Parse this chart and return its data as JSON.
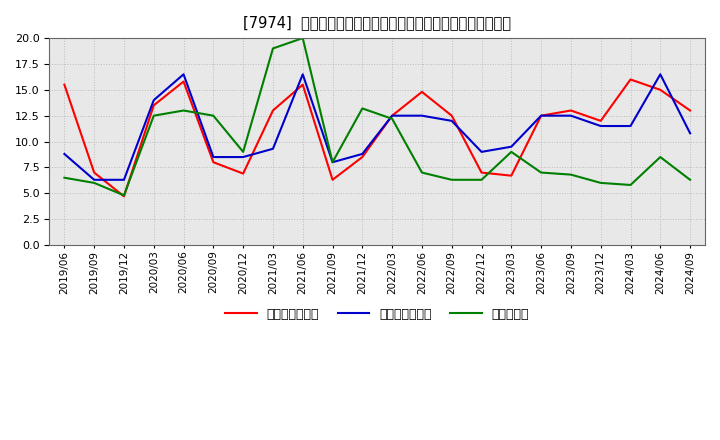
{
  "title": "[7974]  売上債権回転率、買入債務回転率、在庫回転率の推移",
  "dates": [
    "2019/06",
    "2019/09",
    "2019/12",
    "2020/03",
    "2020/06",
    "2020/09",
    "2020/12",
    "2021/03",
    "2021/06",
    "2021/09",
    "2021/12",
    "2022/03",
    "2022/06",
    "2022/09",
    "2022/12",
    "2023/03",
    "2023/06",
    "2023/09",
    "2023/12",
    "2024/03",
    "2024/06",
    "2024/09"
  ],
  "receivables_turnover": [
    15.5,
    7.0,
    4.7,
    13.5,
    15.8,
    8.0,
    6.9,
    13.0,
    15.5,
    6.3,
    8.5,
    12.5,
    14.8,
    12.5,
    7.0,
    6.7,
    12.5,
    13.0,
    12.0,
    16.0,
    15.0,
    13.0
  ],
  "payables_turnover": [
    8.8,
    6.3,
    6.3,
    14.0,
    16.5,
    8.5,
    8.5,
    9.3,
    16.5,
    8.0,
    8.8,
    12.5,
    12.5,
    12.0,
    9.0,
    9.5,
    12.5,
    12.5,
    11.5,
    11.5,
    16.5,
    10.8
  ],
  "inventory_turnover": [
    6.5,
    6.0,
    4.8,
    12.5,
    13.0,
    12.5,
    9.0,
    19.0,
    20.0,
    8.0,
    13.2,
    12.2,
    7.0,
    6.3,
    6.3,
    9.0,
    7.0,
    6.8,
    6.0,
    5.8,
    8.5,
    6.3
  ],
  "line_color_receivables": "#ff0000",
  "line_color_payables": "#0000cc",
  "line_color_inventory": "#008000",
  "ylim": [
    0.0,
    20.0
  ],
  "yticks": [
    0.0,
    2.5,
    5.0,
    7.5,
    10.0,
    12.5,
    15.0,
    17.5,
    20.0
  ],
  "background_color": "#ffffff",
  "plot_bg_color": "#e8e8e8",
  "grid_color": "#bbbbbb",
  "legend_receivables": "売上債権回転率",
  "legend_payables": "買入債務回転率",
  "legend_inventory": "在庫回転率"
}
